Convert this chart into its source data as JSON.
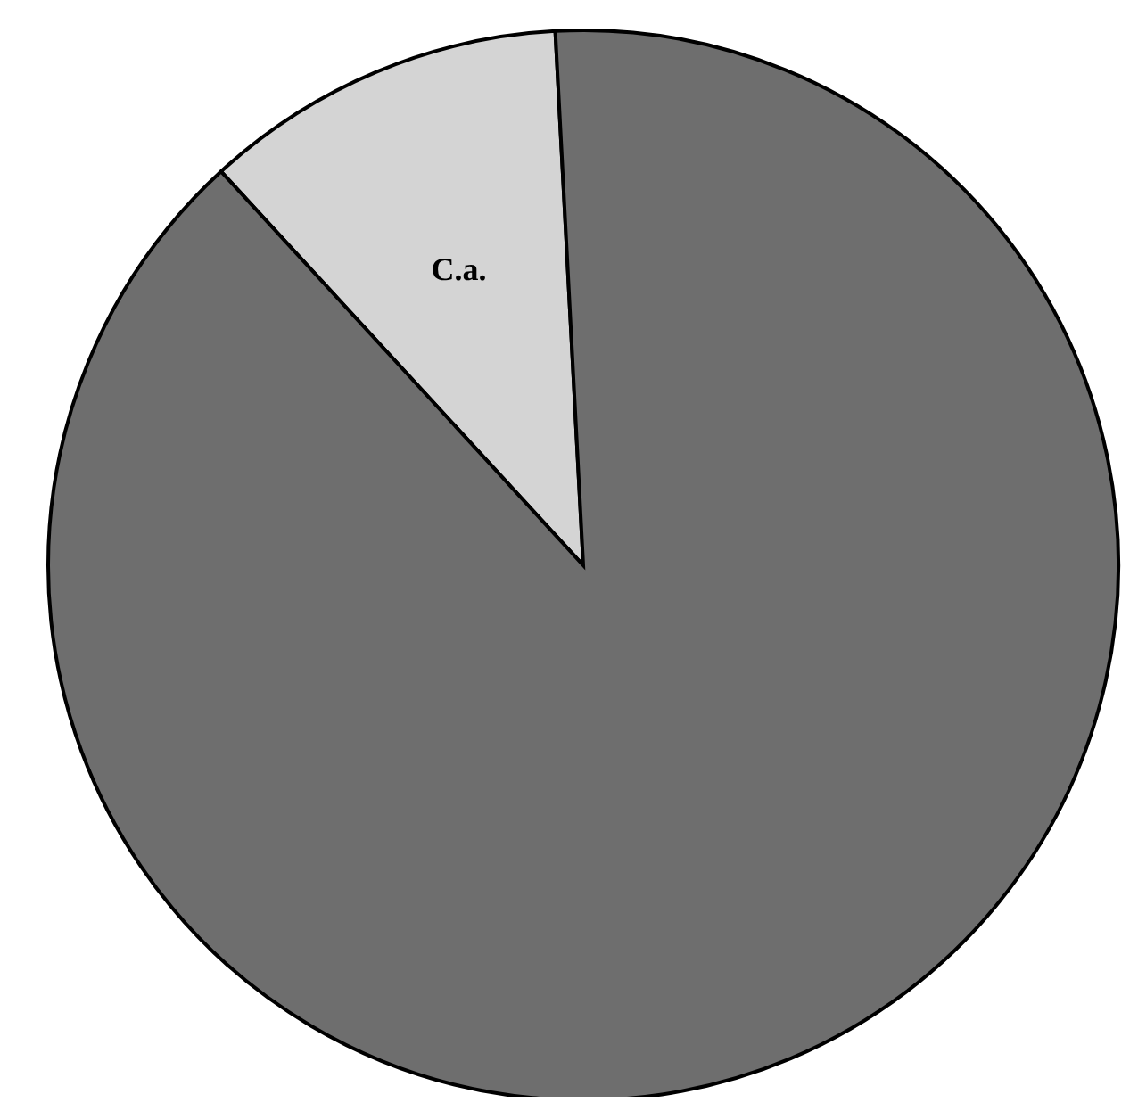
{
  "chart_data": {
    "type": "pie",
    "categories": [
      "C.a.",
      null
    ],
    "values": [
      11,
      89
    ],
    "colors": [
      "#d4d4d4",
      "#6e6e6e"
    ]
  }
}
